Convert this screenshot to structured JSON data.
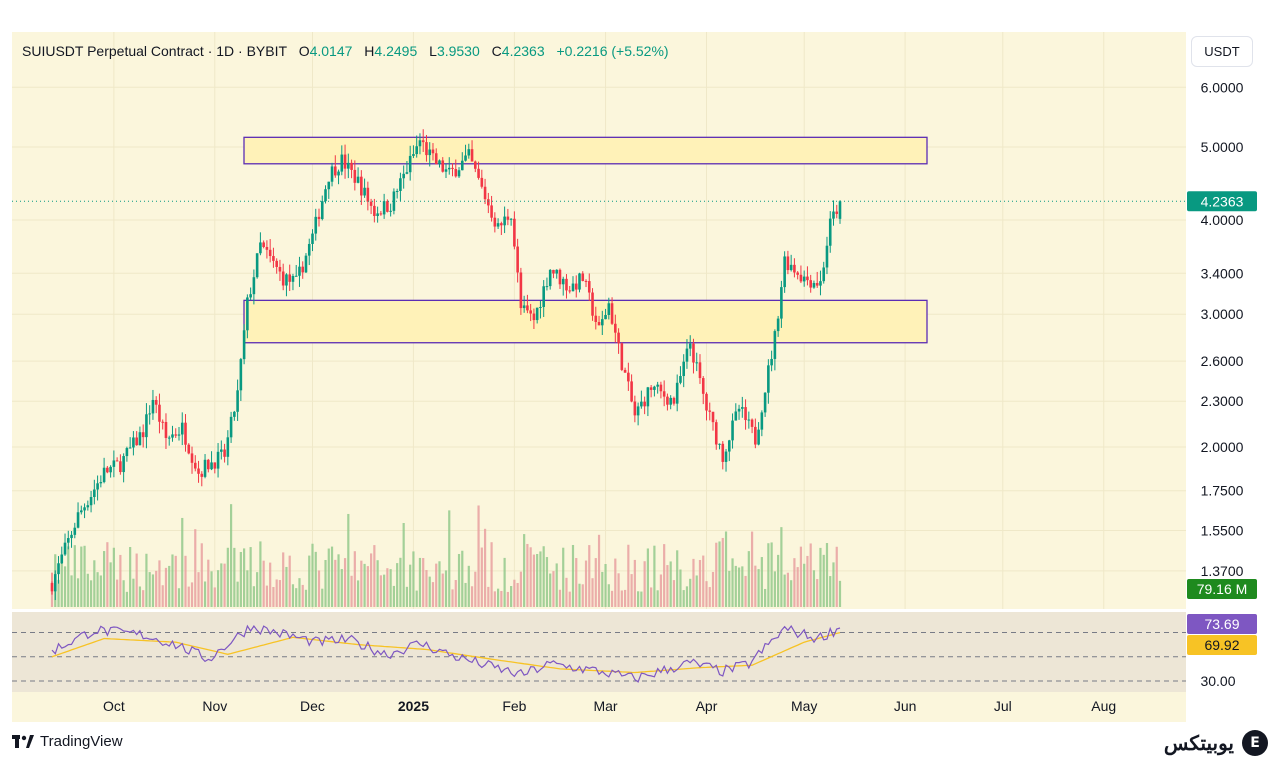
{
  "header": {
    "symbol": "SUIUSDT Perpetual Contract · 1D · BYBIT",
    "o_label": "O",
    "o_value": "4.0147",
    "h_label": "H",
    "h_value": "4.2495",
    "l_label": "L",
    "l_value": "3.9530",
    "c_label": "C",
    "c_value": "4.2363",
    "change": "+0.2216 (+5.52%)"
  },
  "unit_button": "USDT",
  "footer": {
    "tradingview": "TradingView",
    "brand": "یوبیتکس",
    "brand_icon": "E"
  },
  "colors": {
    "up": "#089981",
    "down": "#f23645",
    "panel_bg": "#fbf6dc",
    "rsi_line": "#7e57c2",
    "rsi_ma": "#f7c325",
    "zone_border": "#5b2db4",
    "zone_fill": "#fff2b8"
  },
  "chart_data": {
    "type": "candlestick",
    "scale": "log",
    "x_ticks": [
      "Oct",
      "Nov",
      "Dec",
      "2025",
      "Feb",
      "Mar",
      "Apr",
      "May",
      "Jun",
      "Jul",
      "Aug"
    ],
    "y_ticks": [
      "6.0000",
      "5.0000",
      "4.0000",
      "3.4000",
      "3.0000",
      "2.6000",
      "2.3000",
      "2.0000",
      "1.7500",
      "1.5500",
      "1.3700"
    ],
    "last_price": "4.2363",
    "volume_label": "79.16 M",
    "zones": [
      {
        "name": "resistance",
        "from": 4.75,
        "to": 5.15
      },
      {
        "name": "support",
        "from": 2.75,
        "to": 3.13
      }
    ],
    "anchors": [
      [
        "2024-09-12",
        1.32
      ],
      [
        "2024-09-20",
        1.62
      ],
      [
        "2024-09-28",
        1.85
      ],
      [
        "2024-10-03",
        1.9
      ],
      [
        "2024-10-10",
        2.1
      ],
      [
        "2024-10-13",
        2.32
      ],
      [
        "2024-10-17",
        2.05
      ],
      [
        "2024-10-22",
        2.12
      ],
      [
        "2024-10-27",
        1.85
      ],
      [
        "2024-10-30",
        1.9
      ],
      [
        "2024-11-04",
        1.95
      ],
      [
        "2024-11-08",
        2.35
      ],
      [
        "2024-11-11",
        3.1
      ],
      [
        "2024-11-15",
        3.7
      ],
      [
        "2024-11-22",
        3.35
      ],
      [
        "2024-11-26",
        3.3
      ],
      [
        "2024-12-01",
        3.8
      ],
      [
        "2024-12-06",
        4.6
      ],
      [
        "2024-12-10",
        4.8
      ],
      [
        "2024-12-15",
        4.5
      ],
      [
        "2024-12-20",
        4.1
      ],
      [
        "2024-12-25",
        4.2
      ],
      [
        "2025-01-03",
        5.1
      ],
      [
        "2025-01-07",
        4.8
      ],
      [
        "2025-01-12",
        4.6
      ],
      [
        "2025-01-18",
        4.85
      ],
      [
        "2025-01-27",
        3.9
      ],
      [
        "2025-01-31",
        4.1
      ],
      [
        "2025-02-03",
        3.05
      ],
      [
        "2025-02-07",
        2.95
      ],
      [
        "2025-02-12",
        3.45
      ],
      [
        "2025-02-18",
        3.25
      ],
      [
        "2025-02-22",
        3.35
      ],
      [
        "2025-02-27",
        2.85
      ],
      [
        "2025-03-02",
        3.1
      ],
      [
        "2025-03-05",
        2.7
      ],
      [
        "2025-03-10",
        2.2
      ],
      [
        "2025-03-15",
        2.4
      ],
      [
        "2025-03-22",
        2.3
      ],
      [
        "2025-03-27",
        2.75
      ],
      [
        "2025-04-01",
        2.25
      ],
      [
        "2025-04-06",
        1.95
      ],
      [
        "2025-04-11",
        2.25
      ],
      [
        "2025-04-16",
        2.05
      ],
      [
        "2025-04-22",
        2.8
      ],
      [
        "2025-04-25",
        3.55
      ],
      [
        "2025-05-01",
        3.35
      ],
      [
        "2025-05-06",
        3.3
      ],
      [
        "2025-05-09",
        3.95
      ],
      [
        "2025-05-12",
        4.2363
      ]
    ],
    "rsi": {
      "value_label": "73.69",
      "ma_label": "69.92",
      "lower_label": "30.00",
      "levels": [
        70,
        50,
        30
      ],
      "anchors": [
        [
          "2024-09-12",
          55
        ],
        [
          "2024-09-25",
          72
        ],
        [
          "2024-10-10",
          68
        ],
        [
          "2024-10-20",
          60
        ],
        [
          "2024-10-30",
          48
        ],
        [
          "2024-11-12",
          75
        ],
        [
          "2024-11-20",
          70
        ],
        [
          "2024-12-02",
          62
        ],
        [
          "2024-12-12",
          64
        ],
        [
          "2024-12-24",
          52
        ],
        [
          "2025-01-03",
          61
        ],
        [
          "2025-01-14",
          50
        ],
        [
          "2025-02-03",
          35
        ],
        [
          "2025-02-12",
          44
        ],
        [
          "2025-02-27",
          38
        ],
        [
          "2025-03-10",
          32
        ],
        [
          "2025-03-27",
          45
        ],
        [
          "2025-04-06",
          38
        ],
        [
          "2025-04-14",
          44
        ],
        [
          "2025-04-25",
          73
        ],
        [
          "2025-05-05",
          65
        ],
        [
          "2025-05-12",
          73.69
        ]
      ],
      "ma_anchors": [
        [
          "2024-09-12",
          50
        ],
        [
          "2024-09-28",
          65
        ],
        [
          "2024-10-20",
          62
        ],
        [
          "2024-11-05",
          52
        ],
        [
          "2024-11-25",
          66
        ],
        [
          "2024-12-15",
          60
        ],
        [
          "2025-01-05",
          56
        ],
        [
          "2025-01-25",
          48
        ],
        [
          "2025-02-15",
          40
        ],
        [
          "2025-03-10",
          37
        ],
        [
          "2025-03-30",
          41
        ],
        [
          "2025-04-15",
          43
        ],
        [
          "2025-05-01",
          62
        ],
        [
          "2025-05-12",
          69.92
        ]
      ]
    }
  }
}
